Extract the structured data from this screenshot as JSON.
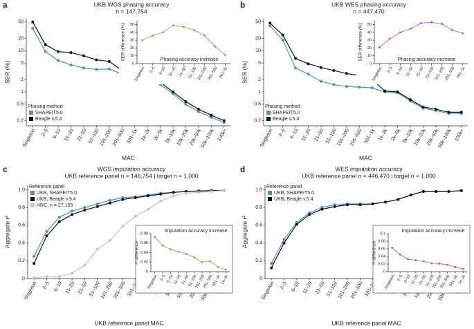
{
  "chart_data": [
    {
      "type": "line",
      "label": "a",
      "title": "UKB WGS phasing accuracy",
      "subtitle": "n = 147,754",
      "x_label": "MAC",
      "y_label": "SER (%)",
      "log": true,
      "ylim": [
        0.15,
        60
      ],
      "yticks": [
        0.2,
        0.5,
        1,
        2,
        5,
        10,
        20,
        50
      ],
      "categories": [
        "Singleton",
        "2–5",
        "6–10",
        "11–20",
        "21–50",
        "51–100",
        "101–200",
        "201–500",
        "501–1k",
        "1k–2k",
        "2k–5k",
        "5k–10k",
        "10k–20k",
        "20k–50k",
        "50k–100k",
        "100k+"
      ],
      "legend_title": "Phasing method",
      "legend": "lower left",
      "series": [
        {
          "name": "SHAPEIT5.0",
          "color": "#4e8fbf",
          "values": [
            35,
            9.5,
            5.8,
            4.5,
            3.8,
            3.5,
            3.6,
            2.7,
            2.5,
            2.2,
            1.5,
            0.9,
            0.5,
            0.33,
            0.24,
            0.18
          ]
        },
        {
          "name": "Beagle v.5.4",
          "color": "#111111",
          "values": [
            50,
            14,
            9.5,
            9,
            7.5,
            6,
            5.5,
            3.3,
            2.9,
            2.4,
            1.7,
            1.0,
            0.58,
            0.38,
            0.27,
            0.2
          ]
        }
      ],
      "inset": {
        "type": "line",
        "y_label": "SER difference (%)",
        "annotation": "Phasing accuracy increase",
        "color": "#6bb252",
        "ylim": [
          0,
          55
        ],
        "yticks": [
          0,
          10,
          20,
          30,
          40,
          50
        ],
        "categories": [
          "Singleton",
          "2–5",
          "6–10",
          "11–20",
          "21–50",
          "51–100",
          "101–200",
          "201–500",
          "501–1k"
        ],
        "values": [
          30,
          36,
          40,
          49,
          47,
          43,
          36,
          22,
          11
        ]
      }
    },
    {
      "type": "line",
      "label": "b",
      "title": "UKB WES phasing accuracy",
      "subtitle": "n = 447,470",
      "x_label": "MAC",
      "y_label": "SER (%)",
      "log": true,
      "ylim": [
        0.15,
        60
      ],
      "yticks": [
        0.2,
        0.5,
        1,
        2,
        5,
        10,
        20,
        50
      ],
      "categories": [
        "Singleton",
        "2–5",
        "6–10",
        "11–20",
        "21–50",
        "51–100",
        "101–200",
        "201–500",
        "501–1k",
        "1k–2k",
        "2k–5k",
        "5k–10k",
        "10k–20k",
        "20k–50k",
        "50k–100k",
        "100k+"
      ],
      "legend_title": "Phasing method",
      "legend": "lower left",
      "series": [
        {
          "name": "SHAPEIT5.0",
          "color": "#4e8fbf",
          "values": [
            40,
            18,
            3.8,
            2.7,
            1.8,
            1.5,
            1.35,
            1.3,
            1.25,
            1.0,
            0.95,
            0.6,
            0.4,
            0.35,
            0.3,
            0.3
          ]
        },
        {
          "name": "Beagle v.5.4",
          "color": "#111111",
          "values": [
            47,
            24,
            6.5,
            4.8,
            3.9,
            3.3,
            2.8,
            2.5,
            2.0,
            1.05,
            1.0,
            0.65,
            0.43,
            0.38,
            0.32,
            0.32
          ]
        }
      ],
      "inset": {
        "type": "line",
        "y_label": "SER difference (%)",
        "annotation": "Phasing accuracy increase",
        "color": "#b04fbf",
        "ylim": [
          0,
          55
        ],
        "yticks": [
          0,
          10,
          20,
          30,
          40,
          50
        ],
        "categories": [
          "Singleton",
          "2–5",
          "6–10",
          "11–20",
          "21–50",
          "51–100",
          "101–200",
          "201–500",
          "501–1k"
        ],
        "values": [
          21,
          32,
          40,
          45,
          52,
          53,
          51,
          43,
          39
        ]
      }
    },
    {
      "type": "line",
      "label": "c",
      "title": "WGS imputation accuracy",
      "subtitle": "UKB reference panel n = 146,754 | target n = 1,000",
      "x_label": "UKB reference panel MAC",
      "y_label": "Aggregate r²",
      "log": false,
      "ylim": [
        0,
        1.05
      ],
      "yticks": [
        0,
        0.2,
        0.4,
        0.6,
        0.8,
        {
          "value": 1,
          "label": "1.0"
        }
      ],
      "categories": [
        "Singleton",
        "2–5",
        "6–10",
        "11–20",
        "21–50",
        "51–100",
        "101–200",
        "201–500",
        "501–1k",
        "1k–2k",
        "2k–5k",
        "5k–10k",
        "10k–20k",
        "20k–50k",
        "50k–100k",
        "100k+"
      ],
      "legend_title": "Reference panel",
      "legend": "upper left",
      "series": [
        {
          "name": "UKB, SHAPEIT5.0",
          "color": "#4e8fbf",
          "values": [
            0.25,
            0.53,
            0.69,
            0.76,
            0.8,
            0.84,
            0.88,
            0.91,
            0.92,
            0.94,
            0.96,
            0.97,
            0.98,
            0.985,
            0.99,
            0.99
          ]
        },
        {
          "name": "UKB, Beagle v.5.4",
          "color": "#111111",
          "values": [
            0.17,
            0.48,
            0.64,
            0.72,
            0.77,
            0.81,
            0.85,
            0.89,
            0.91,
            0.93,
            0.95,
            0.97,
            0.98,
            0.985,
            0.99,
            0.99
          ]
        },
        {
          "name": "HRC, n = 27,165",
          "color": "#c4c4c4",
          "values": [
            0.01,
            0.02,
            0.02,
            0.06,
            0.15,
            0.33,
            0.43,
            0.59,
            0.7,
            0.78,
            0.87,
            0.93,
            0.96,
            0.97,
            0.98,
            0.99
          ]
        }
      ],
      "inset": {
        "type": "line",
        "y_label": "r² difference",
        "annotation": "Imputation accuracy increase",
        "color": "#6bb252",
        "ylim": [
          0,
          0.08
        ],
        "yticks": [
          0,
          0.02,
          0.04,
          0.06,
          0.08
        ],
        "categories": [
          "Singleton",
          "2–5",
          "6–10",
          "11–20",
          "21–50",
          "51–100",
          "101–200",
          "201–500",
          "501–1k",
          "1k–2k"
        ],
        "values": [
          0.073,
          0.055,
          0.047,
          0.042,
          0.037,
          0.03,
          0.02,
          0.022,
          0.01,
          0.004
        ]
      }
    },
    {
      "type": "line",
      "label": "d",
      "title": "WES imputation accuracy",
      "subtitle": "UKB reference panel n = 446,470 | target n = 1,000",
      "x_label": "UKB reference panel MAC",
      "y_label": "Aggregate r²",
      "log": false,
      "ylim": [
        0,
        1.05
      ],
      "yticks": [
        0,
        0.2,
        0.4,
        0.6,
        0.8,
        {
          "value": 1,
          "label": "1.0"
        }
      ],
      "categories": [
        "Singleton",
        "2–5",
        "6–10",
        "11–20",
        "21–50",
        "51–100",
        "101–200",
        "201–500",
        "501–1k",
        "1k–2k",
        "2k–5k",
        "5k–10k",
        "10k–20k",
        "20k–50k",
        "50k–100k",
        "100k+"
      ],
      "legend_title": "Reference panel",
      "legend": "upper left",
      "series": [
        {
          "name": "UKB, SHAPEIT5.0",
          "color": "#4e8fbf",
          "values": [
            0.17,
            0.44,
            0.63,
            0.74,
            0.8,
            0.83,
            0.84,
            0.84,
            0.84,
            0.86,
            0.89,
            0.94,
            0.98,
            0.98,
            0.98,
            0.99
          ]
        },
        {
          "name": "UKB, Beagle v.5.4",
          "color": "#111111",
          "values": [
            0.12,
            0.4,
            0.61,
            0.72,
            0.78,
            0.81,
            0.83,
            0.83,
            0.84,
            0.86,
            0.89,
            0.94,
            0.98,
            0.98,
            0.98,
            0.99
          ]
        }
      ],
      "inset": {
        "type": "line",
        "y_label": "r² difference",
        "annotation": "Imputation accuracy increase",
        "color": "#b04fbf",
        "ylim": [
          0,
          0.1
        ],
        "yticks": [
          0,
          0.02,
          0.04,
          0.06,
          0.08,
          0.1
        ],
        "categories": [
          "Singleton",
          "2–5",
          "6–10",
          "11–20",
          "21–50",
          "51–100",
          "101–200",
          "201–500",
          "501–1k",
          "1k–2k"
        ],
        "values": [
          0.063,
          0.045,
          0.033,
          0.03,
          0.027,
          0.022,
          0.021,
          0.018,
          0.012,
          0.007
        ]
      }
    }
  ]
}
